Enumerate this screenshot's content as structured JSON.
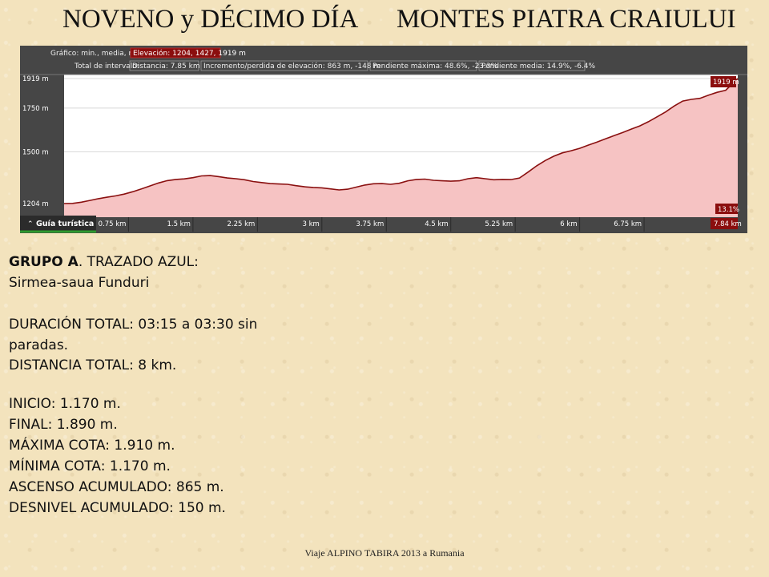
{
  "slide": {
    "title_left": "NOVENO y DÉCIMO DÍA",
    "title_right": "MONTES PIATRA CRAIULUI",
    "footer": "Viaje ALPINO TABIRA 2013 a Rumania"
  },
  "route": {
    "group_bold": "GRUPO A",
    "group_rest": ". TRAZADO AZUL:",
    "name": "Sirmea-saua Funduri",
    "duration_l1": "DURACIÓN TOTAL: 03:15 a 03:30 sin",
    "duration_l2": "paradas.",
    "distance": "DISTANCIA TOTAL: 8 km.",
    "start": "INICIO: 1.170 m.",
    "finish": "FINAL: 1.890 m.",
    "max_alt": "MÁXIMA COTA: 1.910 m.",
    "min_alt": "MÍNIMA COTA: 1.170 m.",
    "ascent": "ASCENSO ACUMULADO:  865 m.",
    "descent": "DESNIVEL ACUMULADO: 150 m."
  },
  "chart_data": {
    "type": "area",
    "header": {
      "graph_label": "Gráfico: min., media, máx:",
      "elevation_label": "Elevación: 1204, 1427, 1919 m",
      "interval_label": "Total de intervalo:",
      "distance_label": "Distancia: 7.85 km",
      "gain_label": "Incremento/perdida de elevación: 863 m, -148 m",
      "max_slope_label": "Pendiente máxima: 48.6%, -23.3%",
      "avg_slope_label": "Pendiente media: 14.9%, -6.4%"
    },
    "ylim": [
      1204,
      1919
    ],
    "xlim": [
      0,
      7.84
    ],
    "y_ticks": [
      {
        "value": 1919,
        "label": "1919 m"
      },
      {
        "value": 1750,
        "label": "1750 m"
      },
      {
        "value": 1500,
        "label": "1500 m"
      },
      {
        "value": 1204,
        "label": "1204 m"
      }
    ],
    "x_ticks": [
      {
        "value": 0.75,
        "label": "0.75 km"
      },
      {
        "value": 1.5,
        "label": "1.5 km"
      },
      {
        "value": 2.25,
        "label": "2.25 km"
      },
      {
        "value": 3,
        "label": "3 km"
      },
      {
        "value": 3.75,
        "label": "3.75 km"
      },
      {
        "value": 4.5,
        "label": "4.5 km"
      },
      {
        "value": 5.25,
        "label": "5.25 km"
      },
      {
        "value": 6,
        "label": "6 km"
      },
      {
        "value": 6.75,
        "label": "6.75 km"
      }
    ],
    "end_x_label": "7.84 km",
    "end_y_label": "1919 m",
    "slope_label": "13.1%",
    "guide_label": "Guía turística",
    "guide_icon": "chevron-up-icon",
    "fill_color": "#f6c3c3",
    "line_color": "#8a1010",
    "highlight_color": "#8b0e0e",
    "series": [
      {
        "x": [
          0,
          0.1,
          0.2,
          0.3,
          0.4,
          0.5,
          0.6,
          0.7,
          0.8,
          0.9,
          1.0,
          1.1,
          1.2,
          1.3,
          1.4,
          1.5,
          1.6,
          1.7,
          1.8,
          1.9,
          2.0,
          2.1,
          2.2,
          2.3,
          2.4,
          2.5,
          2.6,
          2.7,
          2.8,
          2.9,
          3.0,
          3.1,
          3.2,
          3.3,
          3.4,
          3.5,
          3.6,
          3.7,
          3.8,
          3.9,
          4.0,
          4.1,
          4.2,
          4.3,
          4.4,
          4.5,
          4.6,
          4.7,
          4.8,
          4.9,
          5.0,
          5.1,
          5.2,
          5.3,
          5.4,
          5.5,
          5.6,
          5.7,
          5.8,
          5.9,
          6.0,
          6.1,
          6.2,
          6.3,
          6.4,
          6.5,
          6.6,
          6.7,
          6.8,
          6.9,
          7.0,
          7.1,
          7.2,
          7.3,
          7.4,
          7.5,
          7.6,
          7.7,
          7.84
        ],
        "y": [
          1204,
          1205,
          1212,
          1222,
          1232,
          1240,
          1248,
          1258,
          1272,
          1288,
          1305,
          1322,
          1335,
          1342,
          1345,
          1352,
          1362,
          1364,
          1358,
          1350,
          1346,
          1340,
          1330,
          1324,
          1318,
          1316,
          1314,
          1306,
          1300,
          1296,
          1294,
          1288,
          1282,
          1286,
          1298,
          1310,
          1317,
          1318,
          1314,
          1320,
          1334,
          1342,
          1344,
          1337,
          1334,
          1332,
          1334,
          1346,
          1352,
          1346,
          1340,
          1342,
          1341,
          1350,
          1384,
          1420,
          1450,
          1475,
          1494,
          1506,
          1520,
          1538,
          1555,
          1574,
          1592,
          1610,
          1630,
          1648,
          1672,
          1700,
          1728,
          1762,
          1790,
          1800,
          1806,
          1824,
          1840,
          1852,
          1919
        ]
      }
    ]
  }
}
